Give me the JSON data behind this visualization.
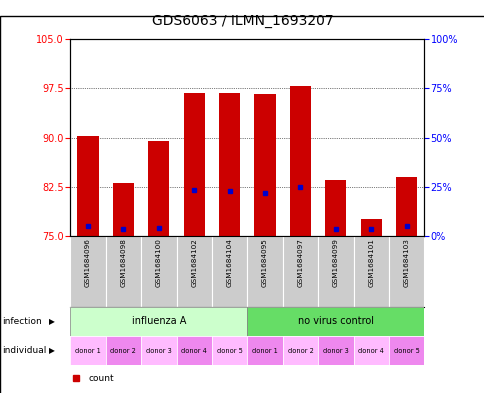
{
  "title": "GDS6063 / ILMN_1693207",
  "samples": [
    "GSM1684096",
    "GSM1684098",
    "GSM1684100",
    "GSM1684102",
    "GSM1684104",
    "GSM1684095",
    "GSM1684097",
    "GSM1684099",
    "GSM1684101",
    "GSM1684103"
  ],
  "bar_tops": [
    90.2,
    83.0,
    89.5,
    96.8,
    96.8,
    96.6,
    97.8,
    83.5,
    77.5,
    84.0
  ],
  "blue_positions": [
    76.5,
    76.0,
    76.2,
    82.0,
    81.8,
    81.5,
    82.5,
    76.0,
    76.0,
    76.5
  ],
  "bar_bottom": 75,
  "ylim_left": [
    75,
    105
  ],
  "yticks_left": [
    75,
    82.5,
    90,
    97.5,
    105
  ],
  "ylim_right": [
    0,
    100
  ],
  "ytick_labels_right": [
    "0%",
    "25%",
    "50%",
    "75%",
    "100%"
  ],
  "infection_groups": [
    {
      "label": "influenza A",
      "color": "#ccffcc"
    },
    {
      "label": "no virus control",
      "color": "#66dd66"
    }
  ],
  "individual_labels": [
    "donor 1",
    "donor 2",
    "donor 3",
    "donor 4",
    "donor 5",
    "donor 1",
    "donor 2",
    "donor 3",
    "donor 4",
    "donor 5"
  ],
  "bar_color": "#cc0000",
  "blue_color": "#0000cc",
  "sample_bg_color": "#cccccc",
  "ind_color_light": "#ffbbff",
  "ind_color_dark": "#ee88ee",
  "title_fontsize": 10,
  "tick_fontsize": 7,
  "bar_width": 0.6
}
